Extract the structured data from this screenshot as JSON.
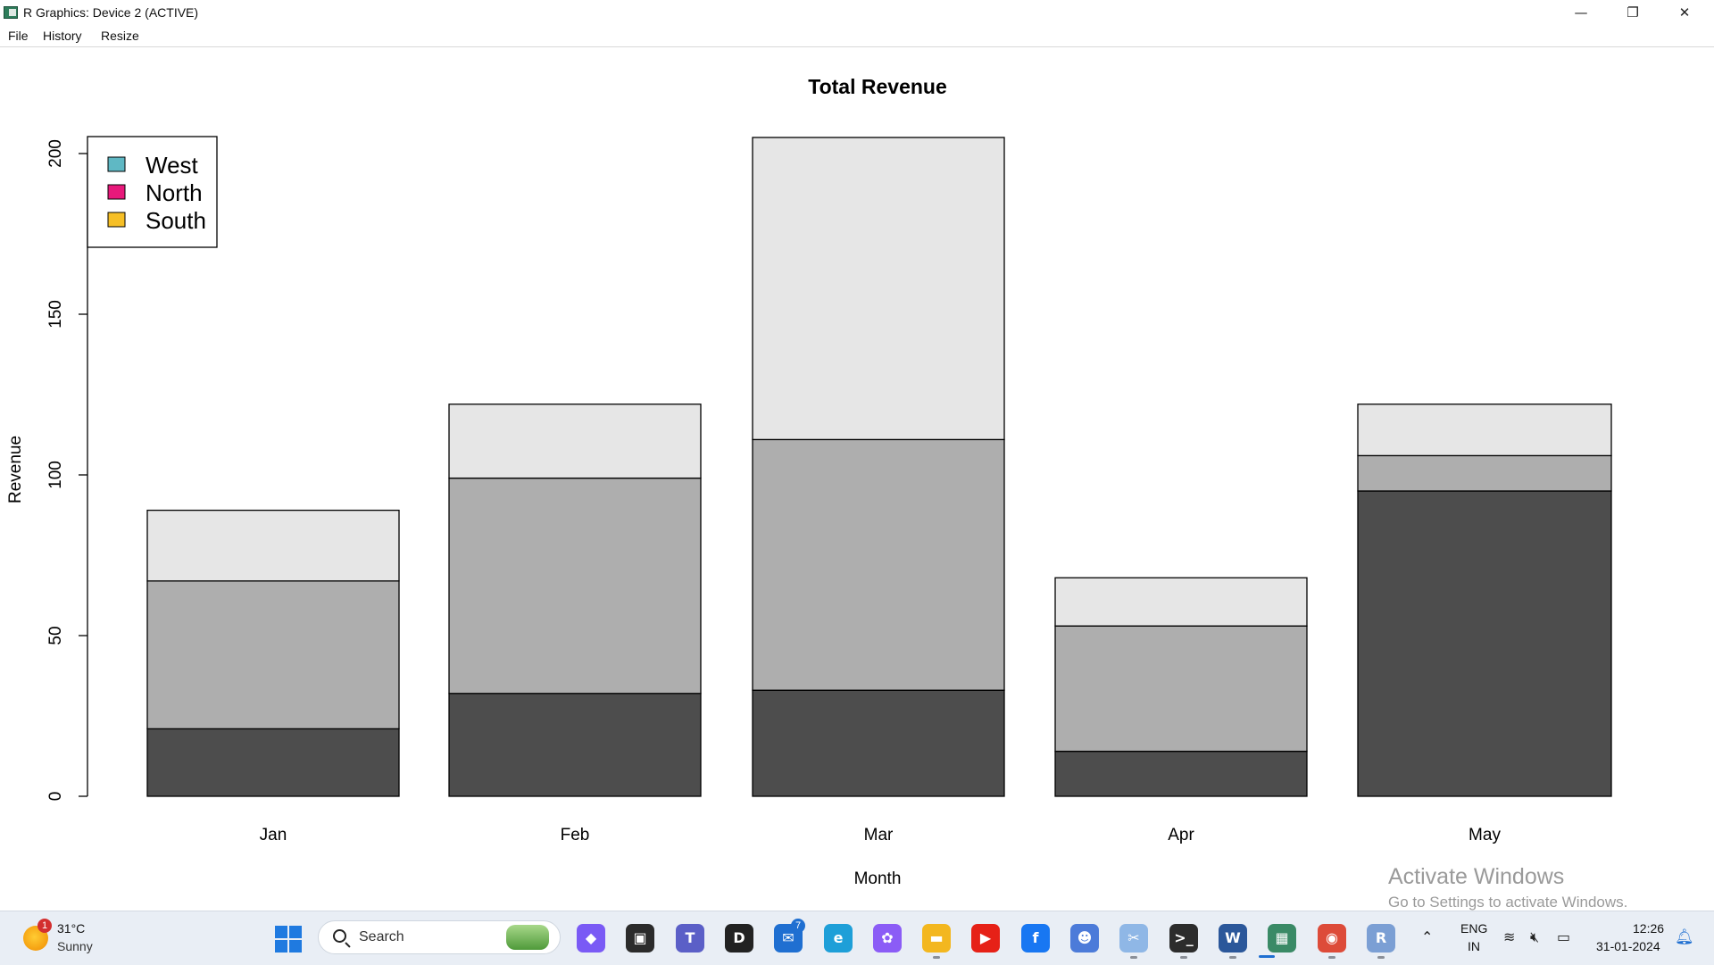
{
  "window": {
    "title": "R Graphics: Device 2 (ACTIVE)",
    "controls": {
      "minimize": "—",
      "restore": "❐",
      "close": "✕"
    }
  },
  "menu": [
    "File",
    "History",
    "Resize"
  ],
  "chart_data": {
    "type": "bar",
    "stacked": true,
    "title": "Total Revenue",
    "xlabel": "Month",
    "ylabel": "Revenue",
    "categories": [
      "Jan",
      "Feb",
      "Mar",
      "Apr",
      "May"
    ],
    "series": [
      {
        "name": "South",
        "values": [
          21,
          32,
          33,
          14,
          95
        ],
        "color": "#4d4d4d"
      },
      {
        "name": "North",
        "values": [
          46,
          67,
          78,
          39,
          11
        ],
        "color": "#aeaeae"
      },
      {
        "name": "West",
        "values": [
          22,
          23,
          94,
          15,
          16
        ],
        "color": "#e6e6e6"
      }
    ],
    "ylim": [
      0,
      205
    ],
    "yticks": [
      0,
      50,
      100,
      150,
      200
    ],
    "grid": false,
    "legend": {
      "position": "top-left",
      "entries": [
        {
          "label": "West",
          "color": "#5fb8c4"
        },
        {
          "label": "North",
          "color": "#e8197b"
        },
        {
          "label": "South",
          "color": "#f6bf26"
        }
      ]
    }
  },
  "watermark": {
    "line1": "Activate Windows",
    "line2": "Go to Settings to activate Windows."
  },
  "taskbar": {
    "weather": {
      "temp": "31°C",
      "condition": "Sunny",
      "badge": "1"
    },
    "search_label": "Search",
    "apps": [
      {
        "name": "copilot-pre",
        "icon": "copilot-icon",
        "color": "#7a5af5",
        "glyph": "◆"
      },
      {
        "name": "task-view",
        "icon": "task-view-icon",
        "color": "#2b2b2b",
        "glyph": "▣"
      },
      {
        "name": "teams",
        "icon": "teams-icon",
        "color": "#5b5fc7",
        "glyph": "T"
      },
      {
        "name": "dell",
        "icon": "dell-icon",
        "color": "#222222",
        "glyph": "D"
      },
      {
        "name": "mail",
        "icon": "mail-icon",
        "color": "#1f6fd1",
        "glyph": "✉",
        "badge": "7"
      },
      {
        "name": "edge",
        "icon": "edge-icon",
        "color": "#1e9fd8",
        "glyph": "e"
      },
      {
        "name": "copilot",
        "icon": "copilot-app-icon",
        "color": "#8b5cf6",
        "glyph": "✿"
      },
      {
        "name": "file-explorer",
        "icon": "folder-icon",
        "color": "#f3b71f",
        "glyph": "▬"
      },
      {
        "name": "youtube",
        "icon": "youtube-icon",
        "color": "#e62117",
        "glyph": "▶"
      },
      {
        "name": "facebook",
        "icon": "facebook-icon",
        "color": "#1877f2",
        "glyph": "f"
      },
      {
        "name": "photos",
        "icon": "photos-icon",
        "color": "#4c7bd9",
        "glyph": "☻"
      },
      {
        "name": "snipping-tool",
        "icon": "snip-icon",
        "color": "#8fb7e6",
        "glyph": "✂"
      },
      {
        "name": "terminal",
        "icon": "terminal-icon",
        "color": "#2c2c2c",
        "glyph": ">_"
      },
      {
        "name": "word",
        "icon": "word-icon",
        "color": "#2b579a",
        "glyph": "W"
      },
      {
        "name": "r-graphics",
        "icon": "r-graphics-icon",
        "color": "#3a8a66",
        "glyph": "▦"
      },
      {
        "name": "chrome",
        "icon": "chrome-icon",
        "color": "#dd4b39",
        "glyph": "◉"
      },
      {
        "name": "r-console",
        "icon": "r-icon",
        "color": "#7b9fd4",
        "glyph": "R"
      }
    ],
    "tray": {
      "lang_top": "ENG",
      "lang_bottom": "IN",
      "time": "12:26",
      "date": "31-01-2024"
    }
  }
}
